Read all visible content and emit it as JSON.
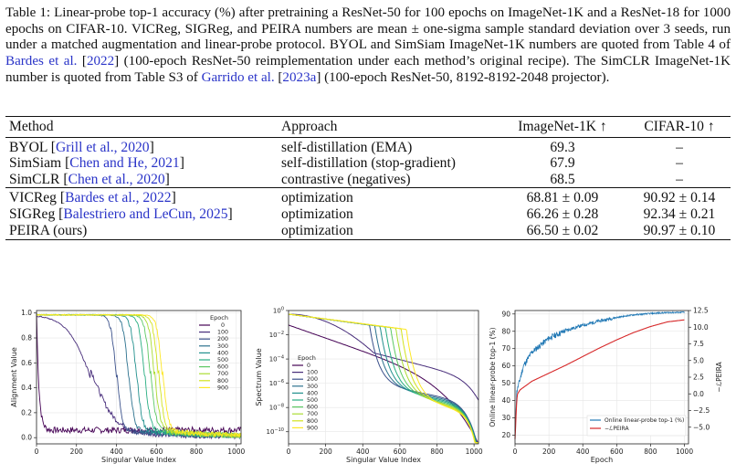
{
  "caption": {
    "label": "Table 1:",
    "part1": " Linear-probe top-1 accuracy (%) after pretraining a ResNet-50 for 100 epochs on ImageNet-1K and a ResNet-18 for 1000 epochs on CIFAR-10. VICReg, SIGReg, and PEIRA numbers are mean ± one-sigma sample standard deviation over 3 seeds, run under a matched augmentation and linear-probe protocol. BYOL and SimSiam ImageNet-1K numbers are quoted from Table 4 of ",
    "ref1": "Bardes et al.",
    "part2": " [",
    "ref1_year": "2022",
    "part3": "] (100-epoch ResNet-50 reimplementation under each method’s original recipe). The SimCLR ImageNet-1K number is quoted from Table S3 of ",
    "ref2": "Garrido et al.",
    "part4": " [",
    "ref2_year": "2023a",
    "part5": "] (100-epoch ResNet-50, 8192-8192-2048 projector)."
  },
  "table": {
    "headers": [
      "Method",
      "Approach",
      "ImageNet-1K ↑",
      "CIFAR-10 ↑"
    ],
    "groups": [
      [
        {
          "method": "BYOL",
          "cite": "Grill et al., 2020",
          "approach": "self-distillation (EMA)",
          "in1k": "69.3",
          "c10": "–"
        },
        {
          "method": "SimSiam",
          "cite": "Chen and He, 2021",
          "approach": "self-distillation (stop-gradient)",
          "in1k": "67.9",
          "c10": "–"
        },
        {
          "method": "SimCLR",
          "cite": "Chen et al., 2020",
          "approach": "contrastive (negatives)",
          "in1k": "68.5",
          "c10": "–"
        }
      ],
      [
        {
          "method": "VICReg",
          "cite": "Bardes et al., 2022",
          "approach": "optimization",
          "in1k": "68.81 ± 0.09",
          "c10": "90.92 ± 0.14"
        },
        {
          "method": "SIGReg",
          "cite": "Balestriero and LeCun, 2025",
          "approach": "optimization",
          "in1k": "66.26 ± 0.28",
          "c10": "92.34 ± 0.21"
        },
        {
          "method": "PEIRA (ours)",
          "cite": "",
          "approach": "optimization",
          "in1k": "66.50 ± 0.02",
          "c10": "90.97 ± 0.10"
        }
      ]
    ]
  },
  "chart_data": [
    {
      "type": "line",
      "title": "",
      "xlabel": "Singular Value Index",
      "ylabel": "Alignment Value",
      "xlim": [
        0,
        1024
      ],
      "ylim": [
        -0.05,
        1.02
      ],
      "x_ticks": [
        "0",
        "200",
        "400",
        "600",
        "800",
        "1000"
      ],
      "y_ticks": [
        "0.0",
        "0.2",
        "0.4",
        "0.6",
        "0.8",
        "1.0"
      ],
      "legend_title": "Epoch",
      "legend_position": "top-right",
      "series": [
        {
          "name": "0",
          "color": "#440154",
          "drop_index": 20
        },
        {
          "name": "100",
          "color": "#472c7a",
          "drop_index": 270
        },
        {
          "name": "200",
          "color": "#3b518b",
          "drop_index": 400
        },
        {
          "name": "300",
          "color": "#2c718e",
          "drop_index": 460
        },
        {
          "name": "400",
          "color": "#21908d",
          "drop_index": 500
        },
        {
          "name": "500",
          "color": "#27ad81",
          "drop_index": 540
        },
        {
          "name": "600",
          "color": "#5cc863",
          "drop_index": 570
        },
        {
          "name": "700",
          "color": "#aadc32",
          "drop_index": 590
        },
        {
          "name": "800",
          "color": "#d2e21b",
          "drop_index": 610
        },
        {
          "name": "900",
          "color": "#fde725",
          "drop_index": 630
        }
      ]
    },
    {
      "type": "line",
      "title": "",
      "xlabel": "Singular Value Index",
      "ylabel": "Spectrum Value",
      "xlim": [
        0,
        1024
      ],
      "ylim_log10": [
        -11,
        0
      ],
      "y_scale": "log",
      "x_ticks": [
        "0",
        "200",
        "400",
        "600",
        "800",
        "1000"
      ],
      "y_ticks_exp": [
        0,
        -2,
        -4,
        -6,
        -8,
        -10
      ],
      "legend_title": "Epoch",
      "legend_position": "bottom-left",
      "series": [
        {
          "name": "0",
          "color": "#440154"
        },
        {
          "name": "100",
          "color": "#472c7a"
        },
        {
          "name": "200",
          "color": "#3b518b"
        },
        {
          "name": "300",
          "color": "#2c718e"
        },
        {
          "name": "400",
          "color": "#21908d"
        },
        {
          "name": "500",
          "color": "#27ad81"
        },
        {
          "name": "600",
          "color": "#5cc863"
        },
        {
          "name": "700",
          "color": "#aadc32"
        },
        {
          "name": "800",
          "color": "#d2e21b"
        },
        {
          "name": "900",
          "color": "#fde725"
        }
      ]
    },
    {
      "type": "line",
      "title": "",
      "xlabel": "Epoch",
      "ylabel_left": "Online linear-probe top-1 (%)",
      "ylabel_right": "−ℒPEIRA",
      "xlim": [
        0,
        1024
      ],
      "ylim_left": [
        15,
        92
      ],
      "ylim_right": [
        -7.5,
        12.5
      ],
      "x_ticks": [
        "0",
        "200",
        "400",
        "600",
        "800",
        "1000"
      ],
      "y_ticks_left": [
        "20",
        "30",
        "40",
        "50",
        "60",
        "70",
        "80",
        "90"
      ],
      "y_ticks_right": [
        "−5.0",
        "−2.5",
        "0.0",
        "2.5",
        "5.0",
        "7.5",
        "10.0",
        "12.5"
      ],
      "legend_position": "bottom-right",
      "series": [
        {
          "name": "Online linear-probe top-1 (%)",
          "color": "#1f77b4",
          "x": [
            0,
            10,
            50,
            100,
            200,
            300,
            400,
            500,
            600,
            700,
            800,
            900,
            1000
          ],
          "y": [
            22,
            45,
            60,
            68,
            76,
            80.5,
            83.5,
            86,
            88,
            89.5,
            90.3,
            90.8,
            91
          ]
        },
        {
          "name": "−ℒPEIRA",
          "color": "#d62728",
          "x": [
            0,
            10,
            15,
            30,
            100,
            200,
            300,
            400,
            500,
            600,
            700,
            800,
            900,
            1000
          ],
          "y": [
            -6.8,
            -1,
            0,
            0.6,
            1.9,
            3.1,
            4.3,
            5.6,
            6.9,
            8.1,
            9.2,
            10.1,
            10.8,
            11.1
          ]
        }
      ]
    }
  ]
}
